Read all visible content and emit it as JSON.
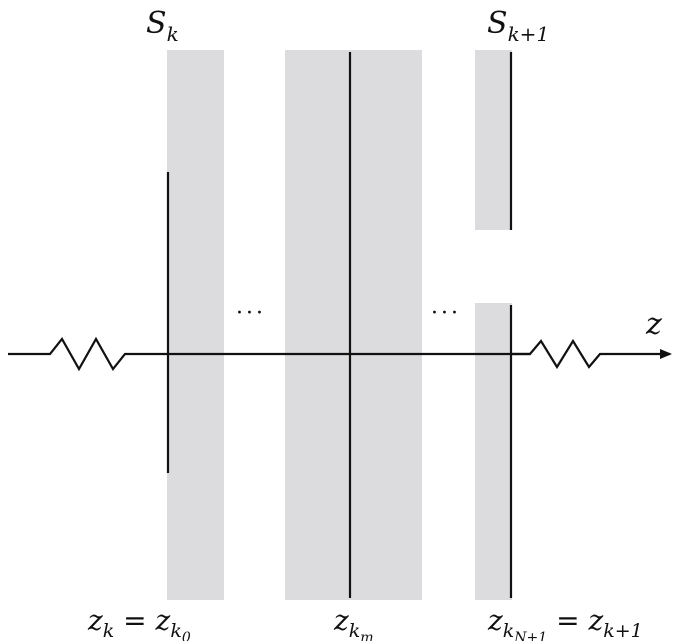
{
  "labels": {
    "s_k_base": "S",
    "s_k_sub": "k",
    "s_k1_base": "S",
    "s_k1_sub": "k+1",
    "z_axis": "z",
    "ellipsis": "···",
    "bottom_left_base": "z",
    "bottom_left_sub": "k",
    "bottom_left_eq": " = ",
    "bottom_left_rhs_base": "z",
    "bottom_left_rhs_sub": "k",
    "bottom_left_rhs_subsub": "0",
    "bottom_mid_base": "z",
    "bottom_mid_sub": "k",
    "bottom_mid_subsub": "m",
    "bottom_right_base": "z",
    "bottom_right_sub": "k",
    "bottom_right_subsub": "N+1",
    "bottom_right_eq": " = ",
    "bottom_right_rhs_base": "z",
    "bottom_right_rhs_sub": "k+1"
  },
  "colors": {
    "band": "#dcdcde",
    "line": "#111111"
  }
}
